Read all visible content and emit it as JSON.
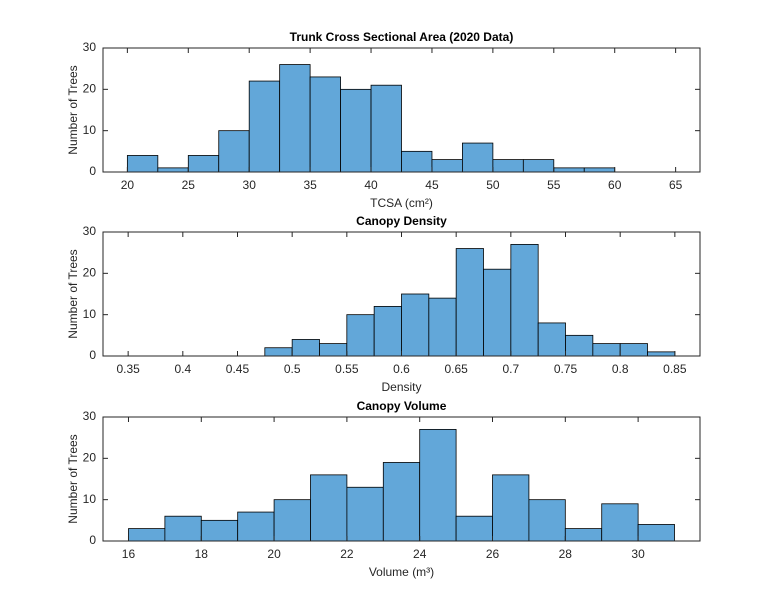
{
  "chart_data": [
    {
      "type": "histogram",
      "title": "Trunk Cross Sectional Area  (2020 Data)",
      "x_label": "TCSA (cm²)",
      "y_label": "Number of Trees",
      "color": "#62a7d9",
      "bins": [
        20,
        22.5,
        25,
        27.5,
        30,
        32.5,
        35,
        37.5,
        40,
        42.5,
        45,
        47.5,
        50,
        52.5,
        55,
        57.5,
        60
      ],
      "counts": [
        4,
        1,
        4,
        10,
        22,
        26,
        23,
        20,
        21,
        5,
        3,
        7,
        3,
        3,
        1,
        1
      ],
      "xlim": [
        18,
        67
      ],
      "xticks": [
        20,
        25,
        30,
        35,
        40,
        45,
        50,
        55,
        60,
        65
      ],
      "ylim": [
        0,
        30
      ],
      "yticks": [
        0,
        10,
        20,
        30
      ]
    },
    {
      "type": "histogram",
      "title": "Canopy Density",
      "x_label": "Density",
      "y_label": "Number of Trees",
      "color": "#62a7d9",
      "bins": [
        0.475,
        0.5,
        0.525,
        0.55,
        0.575,
        0.6,
        0.625,
        0.65,
        0.675,
        0.7,
        0.725,
        0.75,
        0.775,
        0.8,
        0.825,
        0.85
      ],
      "counts": [
        2,
        4,
        3,
        10,
        12,
        15,
        14,
        26,
        21,
        27,
        8,
        5,
        3,
        3,
        1
      ],
      "xlim": [
        0.327,
        0.873
      ],
      "xticks": [
        0.35,
        0.4,
        0.45,
        0.5,
        0.55,
        0.6,
        0.65,
        0.7,
        0.75,
        0.8,
        0.85
      ],
      "ylim": [
        0,
        30
      ],
      "yticks": [
        0,
        10,
        20,
        30
      ]
    },
    {
      "type": "histogram",
      "title": "Canopy Volume",
      "x_label": "Volume (m³)",
      "y_label": "Number of Trees",
      "color": "#62a7d9",
      "bins": [
        16,
        17,
        18,
        19,
        20,
        21,
        22,
        23,
        24,
        25,
        26,
        27,
        28,
        29,
        30,
        31
      ],
      "counts": [
        3,
        6,
        5,
        7,
        10,
        16,
        13,
        19,
        27,
        6,
        16,
        10,
        3,
        9,
        4
      ],
      "xlim": [
        15.3,
        31.7
      ],
      "xticks": [
        16,
        18,
        20,
        22,
        24,
        26,
        28,
        30
      ],
      "ylim": [
        0,
        30
      ],
      "yticks": [
        0,
        10,
        20,
        30
      ]
    }
  ]
}
